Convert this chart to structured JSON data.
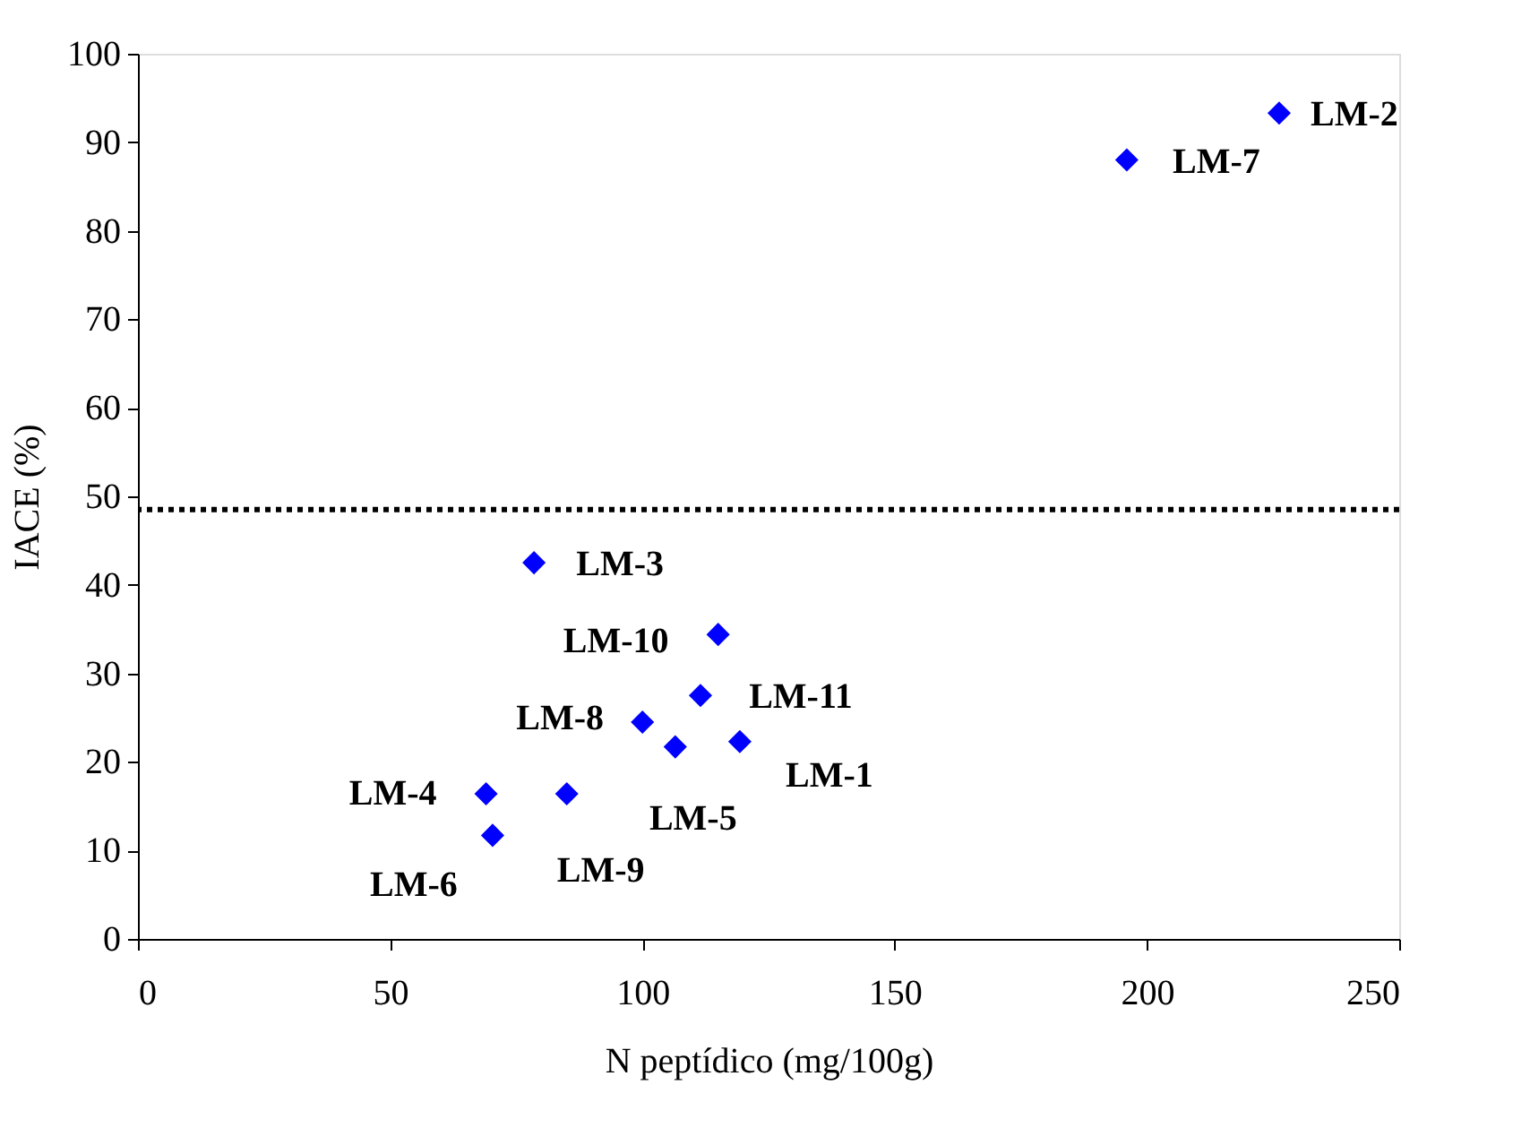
{
  "chart_data": {
    "type": "scatter",
    "xlabel": "N peptídico (mg/100g)",
    "ylabel": "IACE (%)",
    "x": [
      226.2,
      196,
      78.5,
      115,
      111.5,
      100,
      106.5,
      119.3,
      69,
      85,
      70.3
    ],
    "series": [
      {
        "color": "#0000ff",
        "values": [
          93.3,
          88,
          42.5,
          34.4,
          27.5,
          24.5,
          21.7,
          22.3,
          16.4,
          16.4,
          11.7
        ]
      }
    ],
    "marker": "diamond",
    "grid": false,
    "xlim": [
      0,
      250
    ],
    "xticks": [
      0,
      50,
      100,
      150,
      200,
      250
    ],
    "ylim": [
      0,
      100
    ],
    "yticks": [
      0,
      10,
      20,
      30,
      40,
      50,
      60,
      70,
      80,
      90,
      100
    ],
    "ref_lines": [
      {
        "axis": "y",
        "value": 48.5,
        "line_style": "dotted",
        "color": "#000000"
      }
    ],
    "annotations": [
      {
        "text": "LM-2",
        "x": 226.2,
        "y": 93.3
      },
      {
        "text": "LM-7",
        "x": 196,
        "y": 88
      },
      {
        "text": "LM-3",
        "x": 78.5,
        "y": 42.5
      },
      {
        "text": "LM-10",
        "x": 115,
        "y": 34.4
      },
      {
        "text": "LM-11",
        "x": 111.5,
        "y": 27.5
      },
      {
        "text": "LM-8",
        "x": 100,
        "y": 24.5
      },
      {
        "text": "LM-5",
        "x": 106.5,
        "y": 21.7
      },
      {
        "text": "LM-1",
        "x": 119.3,
        "y": 22.3
      },
      {
        "text": "LM-4",
        "x": 69,
        "y": 16.4
      },
      {
        "text": "LM-9",
        "x": 85,
        "y": 16.4
      },
      {
        "text": "LM-6",
        "x": 70.3,
        "y": 11.7
      }
    ]
  }
}
